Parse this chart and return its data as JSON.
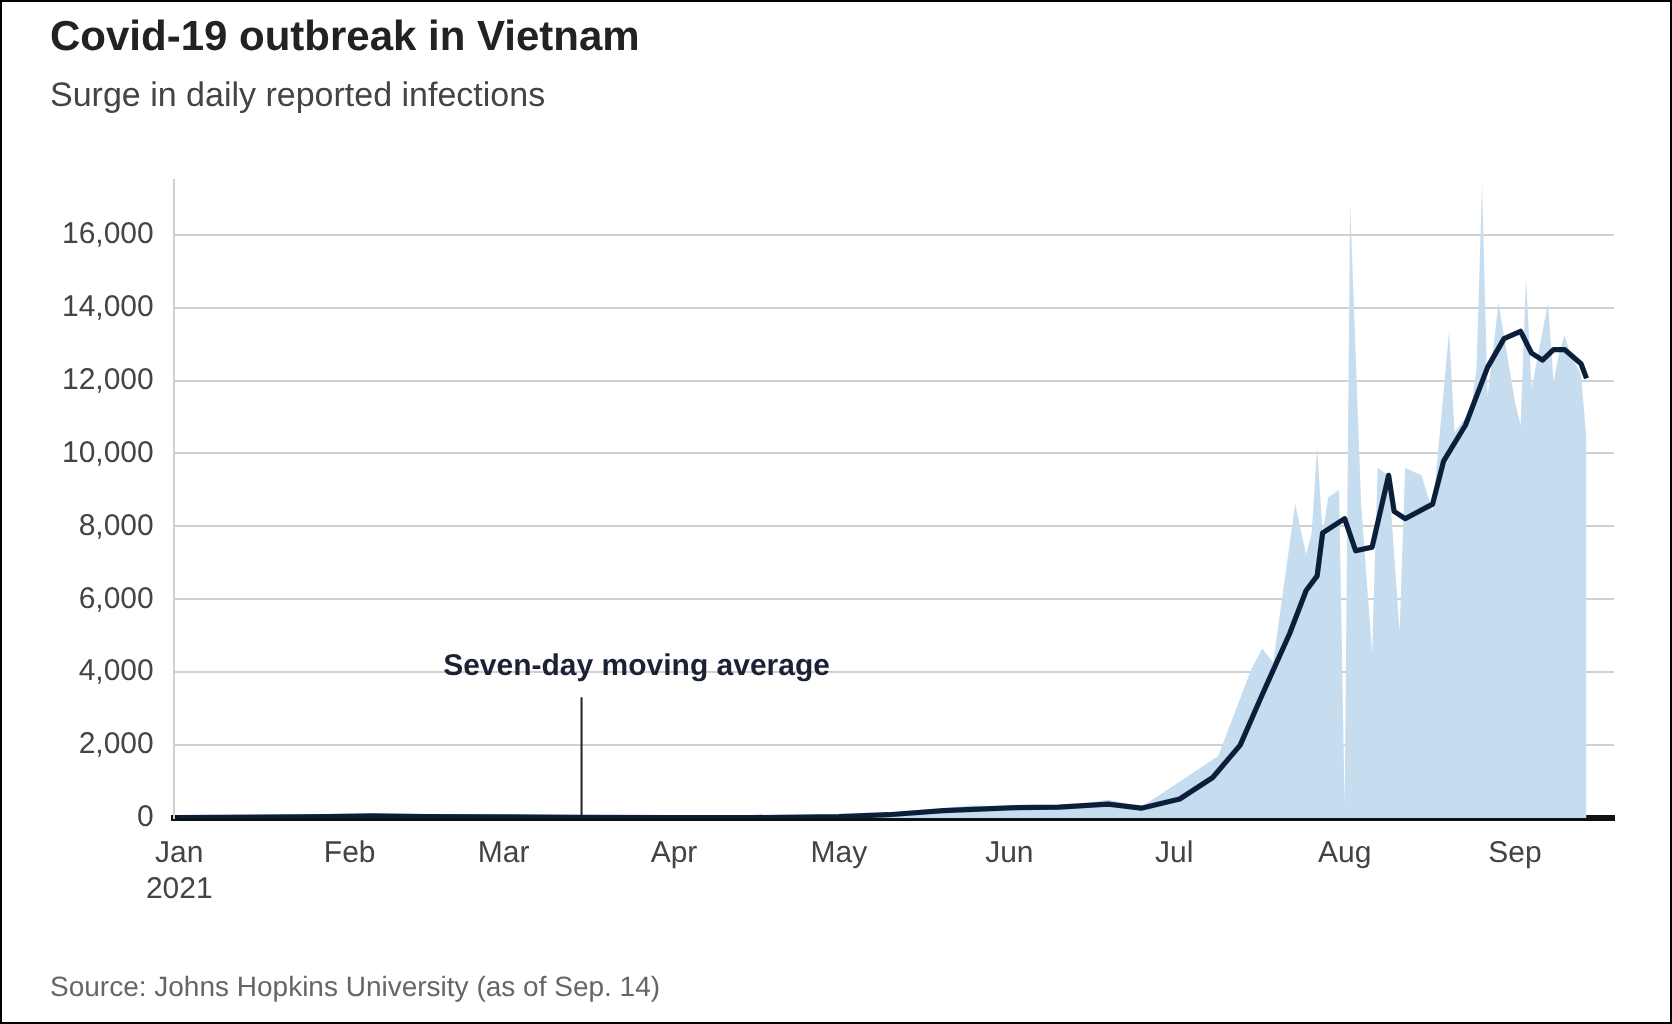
{
  "chart_data": {
    "type": "area",
    "title": "Covid-19 outbreak in Vietnam",
    "subtitle": "Surge in daily reported infections",
    "xlim": [
      "2020-12-31",
      "2021-09-19"
    ],
    "xticks": [
      {
        "value": "2021-01-01",
        "label": "Jan\n2021"
      },
      {
        "value": "2021-02-01",
        "label": "Feb"
      },
      {
        "value": "2021-03-01",
        "label": "Mar"
      },
      {
        "value": "2021-04-01",
        "label": "Apr"
      },
      {
        "value": "2021-05-01",
        "label": "May"
      },
      {
        "value": "2021-06-01",
        "label": "Jun"
      },
      {
        "value": "2021-07-01",
        "label": "Jul"
      },
      {
        "value": "2021-08-01",
        "label": "Aug"
      },
      {
        "value": "2021-09-01",
        "label": "Sep"
      }
    ],
    "ylim": [
      0,
      17500
    ],
    "yticks": [
      0,
      {
        "value": 2000,
        "label": "2,000"
      },
      {
        "value": 4000,
        "label": "4,000"
      },
      {
        "value": 6000,
        "label": "6,000"
      },
      {
        "value": 8000,
        "label": "8,000"
      },
      {
        "value": 10000,
        "label": "10,000"
      },
      {
        "value": 12000,
        "label": "12,000"
      },
      {
        "value": 14000,
        "label": "14,000"
      },
      {
        "value": 16000,
        "label": "16,000"
      }
    ],
    "grid": "y",
    "series": [
      {
        "type": "area",
        "color": "#c6dcef",
        "x": [
          "2021-01-01",
          "2021-01-28",
          "2021-02-05",
          "2021-02-15",
          "2021-03-01",
          "2021-04-01",
          "2021-05-01",
          "2021-05-15",
          "2021-05-25",
          "2021-06-01",
          "2021-06-10",
          "2021-06-19",
          "2021-06-25",
          "2021-07-03",
          "2021-07-09",
          "2021-07-15",
          "2021-07-17",
          "2021-07-19",
          "2021-07-23",
          "2021-07-25",
          "2021-07-26",
          "2021-07-27",
          "2021-07-28",
          "2021-07-29",
          "2021-07-31",
          "2021-08-01",
          "2021-08-02",
          "2021-08-04",
          "2021-08-06",
          "2021-08-07",
          "2021-08-09",
          "2021-08-11",
          "2021-08-12",
          "2021-08-15",
          "2021-08-17",
          "2021-08-20",
          "2021-08-21",
          "2021-08-24",
          "2021-08-25",
          "2021-08-26",
          "2021-08-27",
          "2021-08-29",
          "2021-09-01",
          "2021-09-02",
          "2021-09-03",
          "2021-09-04",
          "2021-09-07",
          "2021-09-08",
          "2021-09-09",
          "2021-09-10",
          "2021-09-11",
          "2021-09-13",
          "2021-09-14"
        ],
        "values": [
          0,
          70,
          80,
          30,
          20,
          10,
          50,
          180,
          350,
          300,
          280,
          500,
          300,
          1100,
          1700,
          4070,
          4650,
          4270,
          8610,
          7230,
          7820,
          10190,
          7800,
          8800,
          9000,
          300,
          16890,
          8600,
          4520,
          9610,
          9400,
          5110,
          9600,
          9400,
          8410,
          13340,
          10580,
          11190,
          12360,
          17390,
          11570,
          14130,
          11400,
          10780,
          14820,
          11780,
          14130,
          11970,
          12750,
          13250,
          12750,
          12160,
          10390
        ]
      },
      {
        "type": "line",
        "color": "#0c1f3a",
        "x": [
          "2021-01-01",
          "2021-01-28",
          "2021-02-05",
          "2021-02-15",
          "2021-03-01",
          "2021-03-15",
          "2021-04-01",
          "2021-04-15",
          "2021-05-01",
          "2021-05-10",
          "2021-05-20",
          "2021-06-01",
          "2021-06-10",
          "2021-06-19",
          "2021-06-25",
          "2021-07-02",
          "2021-07-08",
          "2021-07-13",
          "2021-07-17",
          "2021-07-22",
          "2021-07-25",
          "2021-07-27",
          "2021-07-28",
          "2021-08-01",
          "2021-08-03",
          "2021-08-06",
          "2021-08-09",
          "2021-08-10",
          "2021-08-12",
          "2021-08-17",
          "2021-08-19",
          "2021-08-23",
          "2021-08-25",
          "2021-08-27",
          "2021-08-30",
          "2021-09-02",
          "2021-09-04",
          "2021-09-06",
          "2021-09-08",
          "2021-09-10",
          "2021-09-13",
          "2021-09-14"
        ],
        "values": [
          10,
          40,
          60,
          40,
          30,
          20,
          10,
          10,
          40,
          90,
          200,
          280,
          300,
          380,
          270,
          520,
          1110,
          2000,
          3380,
          5060,
          6240,
          6640,
          7820,
          8210,
          7330,
          7430,
          9400,
          8410,
          8210,
          8610,
          9790,
          10780,
          11570,
          12360,
          13150,
          13350,
          12750,
          12560,
          12850,
          12850,
          12460,
          12060
        ]
      }
    ],
    "annotations": [
      {
        "text": "Seven-day moving average",
        "x": "2021-03-15",
        "y": 20
      },
      "Source: Johns Hopkins University (as of Sep. 14)"
    ]
  }
}
